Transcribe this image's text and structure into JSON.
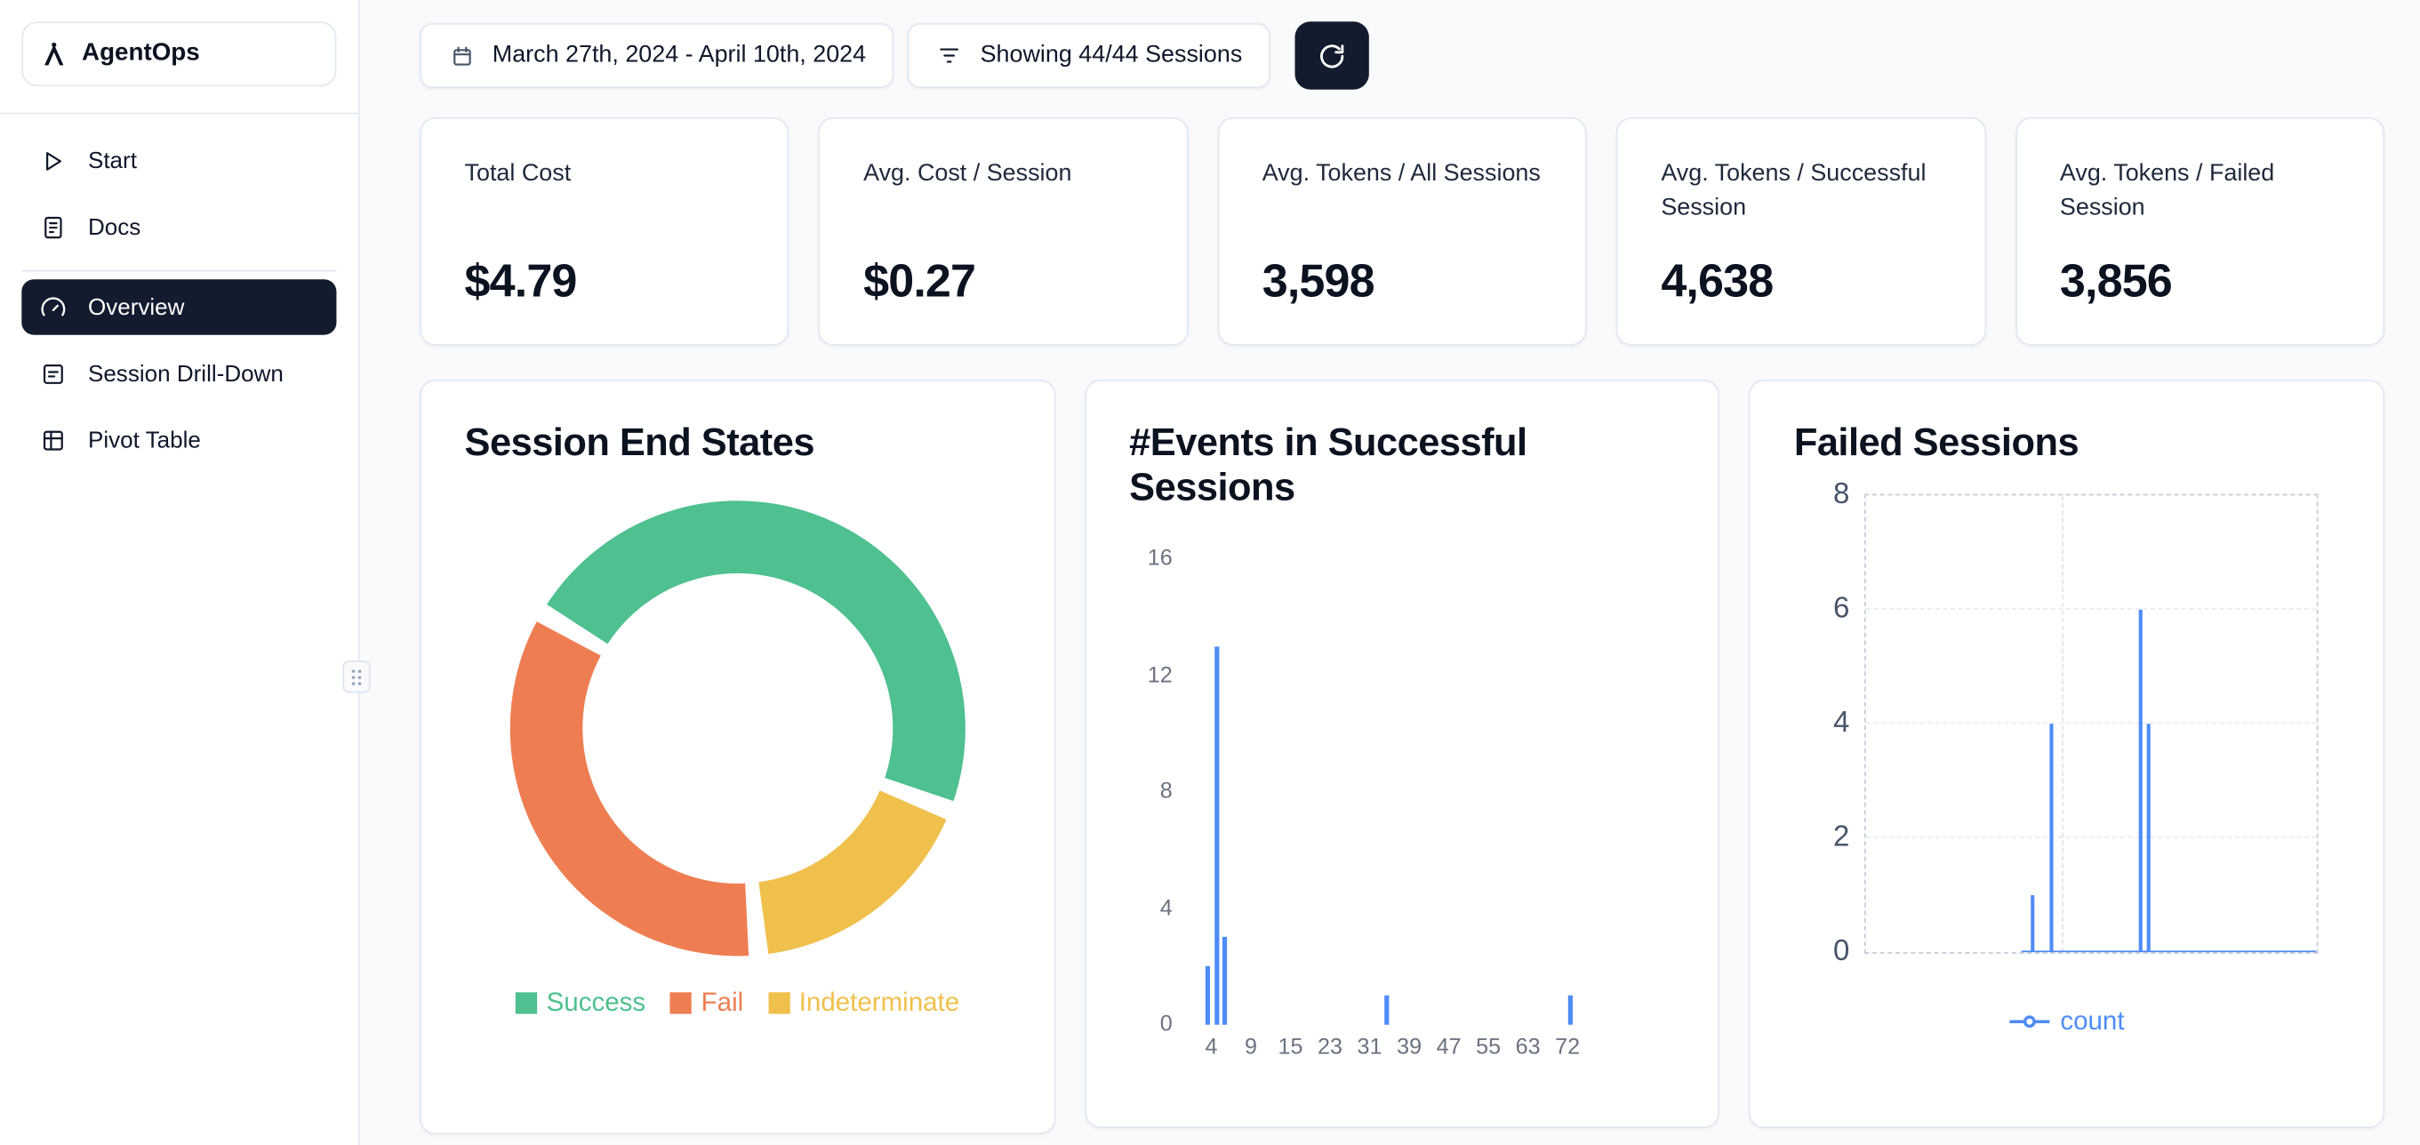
{
  "app": {
    "name": "AgentOps"
  },
  "theme": {
    "accent_blue": "#4e8cf7",
    "navy": "#131b2e",
    "success_green": "#4fc08f",
    "fail_orange": "#ee7e52",
    "indeterminate_yellow": "#f0c04d",
    "card_border": "#e2e8f0",
    "page_bg": "#f8fafc"
  },
  "sidebar": {
    "items": [
      {
        "label": "Start",
        "icon": "play-icon"
      },
      {
        "label": "Docs",
        "icon": "docs-icon"
      },
      {
        "label": "Overview",
        "icon": "gauge-icon",
        "active": true
      },
      {
        "label": "Session Drill-Down",
        "icon": "drilldown-icon"
      },
      {
        "label": "Pivot Table",
        "icon": "pivot-icon"
      }
    ]
  },
  "toolbar": {
    "date_range": "March 27th, 2024 - April 10th, 2024",
    "sessions_filter": "Showing 44/44 Sessions"
  },
  "stats": [
    {
      "label": "Total Cost",
      "value": "$4.79"
    },
    {
      "label": "Avg. Cost / Session",
      "value": "$0.27"
    },
    {
      "label": "Avg. Tokens / All Sessions",
      "value": "3,598"
    },
    {
      "label": "Avg. Tokens / Successful Session",
      "value": "4,638"
    },
    {
      "label": "Avg. Tokens / Failed Session",
      "value": "3,856"
    }
  ],
  "chart_data": [
    {
      "type": "pie",
      "title": "Session End States",
      "labels": [
        "Success",
        "Fail",
        "Indeterminate"
      ],
      "values_pct": [
        48,
        35,
        17
      ],
      "colors": {
        "Success": "#4fc08f",
        "Fail": "#ee7e52",
        "Indeterminate": "#f0c04d"
      },
      "segments_draw_order": [
        {
          "label": "Success",
          "pct": 48,
          "color": "#4fc08f"
        },
        {
          "label": "Indeterminate",
          "pct": 17,
          "color": "#f0c04d"
        },
        {
          "label": "Fail",
          "pct": 35,
          "color": "#ee7e52"
        }
      ],
      "start_angle_deg": -57,
      "gap_deg": 5,
      "legend_position": "bottom"
    },
    {
      "type": "bar",
      "title": "#Events in Successful Sessions",
      "ylim": [
        0,
        16
      ],
      "y_ticks": [
        0,
        4,
        8,
        12,
        16
      ],
      "x_ticks": [
        4,
        9,
        15,
        23,
        31,
        39,
        47,
        55,
        63,
        72
      ],
      "x_tick_first_frac": 0.05,
      "x_tick_last_frac": 0.81,
      "bars": [
        {
          "x": 3,
          "count": 2,
          "frac": 0.037
        },
        {
          "x": 5,
          "count": 13,
          "frac": 0.058
        },
        {
          "x": 7,
          "count": 3,
          "frac": 0.075
        },
        {
          "x": 38,
          "count": 1,
          "frac": 0.42
        },
        {
          "x": 72,
          "count": 1,
          "frac": 0.81
        }
      ],
      "bar_color": "#4e8cf7",
      "grid": "off"
    },
    {
      "type": "line",
      "title": "Failed Sessions",
      "ylim": [
        0,
        8
      ],
      "y_ticks": [
        0,
        2,
        4,
        6,
        8
      ],
      "series": [
        {
          "name": "count",
          "baseline_start_frac": 0.345,
          "baseline_end_frac": 1.0,
          "spikes": [
            {
              "frac": 0.37,
              "value": 1
            },
            {
              "frac": 0.412,
              "value": 4
            },
            {
              "frac": 0.61,
              "value": 6
            },
            {
              "frac": 0.628,
              "value": 4
            }
          ]
        }
      ],
      "line_color": "#4e8cf7",
      "legend": [
        "count"
      ],
      "grid": "dashed",
      "vgrid_fracs": [
        0.435
      ]
    }
  ]
}
